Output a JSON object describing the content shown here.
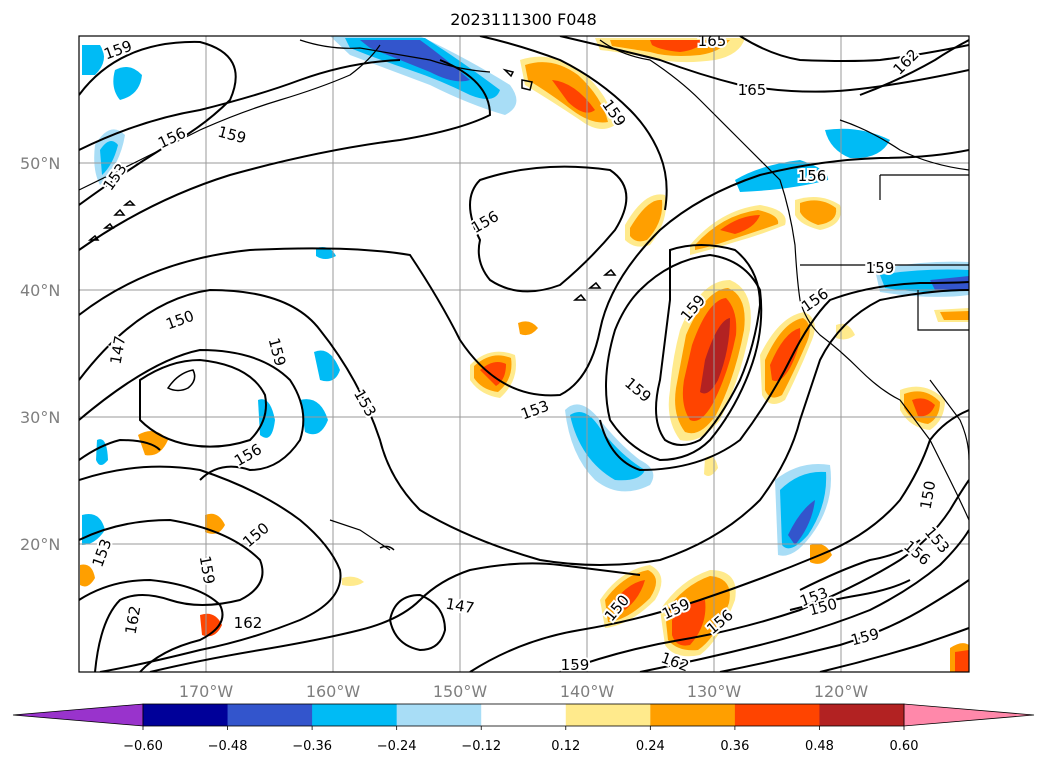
{
  "title": "2023111300 F048",
  "map": {
    "lat_labels": [
      "50°N",
      "40°N",
      "30°N",
      "20°N"
    ],
    "lon_labels": [
      "170°W",
      "160°W",
      "150°W",
      "140°W",
      "130°W",
      "120°W"
    ],
    "contour_labels": [
      {
        "text": "159"
      },
      {
        "text": "156"
      },
      {
        "text": "159"
      },
      {
        "text": "153"
      },
      {
        "text": "165"
      },
      {
        "text": "165"
      },
      {
        "text": "159"
      },
      {
        "text": "162"
      },
      {
        "text": "156"
      },
      {
        "text": "156"
      },
      {
        "text": "159"
      },
      {
        "text": "156"
      },
      {
        "text": "159"
      },
      {
        "text": "150"
      },
      {
        "text": "147"
      },
      {
        "text": "159"
      },
      {
        "text": "153"
      },
      {
        "text": "159"
      },
      {
        "text": "153"
      },
      {
        "text": "156"
      },
      {
        "text": "150"
      },
      {
        "text": "153"
      },
      {
        "text": "159"
      },
      {
        "text": "162"
      },
      {
        "text": "162"
      },
      {
        "text": "147"
      },
      {
        "text": "150"
      },
      {
        "text": "159"
      },
      {
        "text": "156"
      },
      {
        "text": "162"
      },
      {
        "text": "159"
      },
      {
        "text": "153"
      },
      {
        "text": "150"
      },
      {
        "text": "159"
      },
      {
        "text": "150"
      },
      {
        "text": "153"
      },
      {
        "text": "156"
      }
    ]
  },
  "colorbar": {
    "colors": [
      "#9933cc",
      "#000099",
      "#3355cc",
      "#00bbf5",
      "#a8ddf6",
      "#ffffff",
      "#ffea8c",
      "#ff9f00",
      "#ff4400",
      "#b22222",
      "#ff88aa"
    ],
    "ticks": [
      "−0.60",
      "−0.48",
      "−0.36",
      "−0.24",
      "−0.12",
      "0.12",
      "0.24",
      "0.36",
      "0.48",
      "0.60"
    ]
  }
}
